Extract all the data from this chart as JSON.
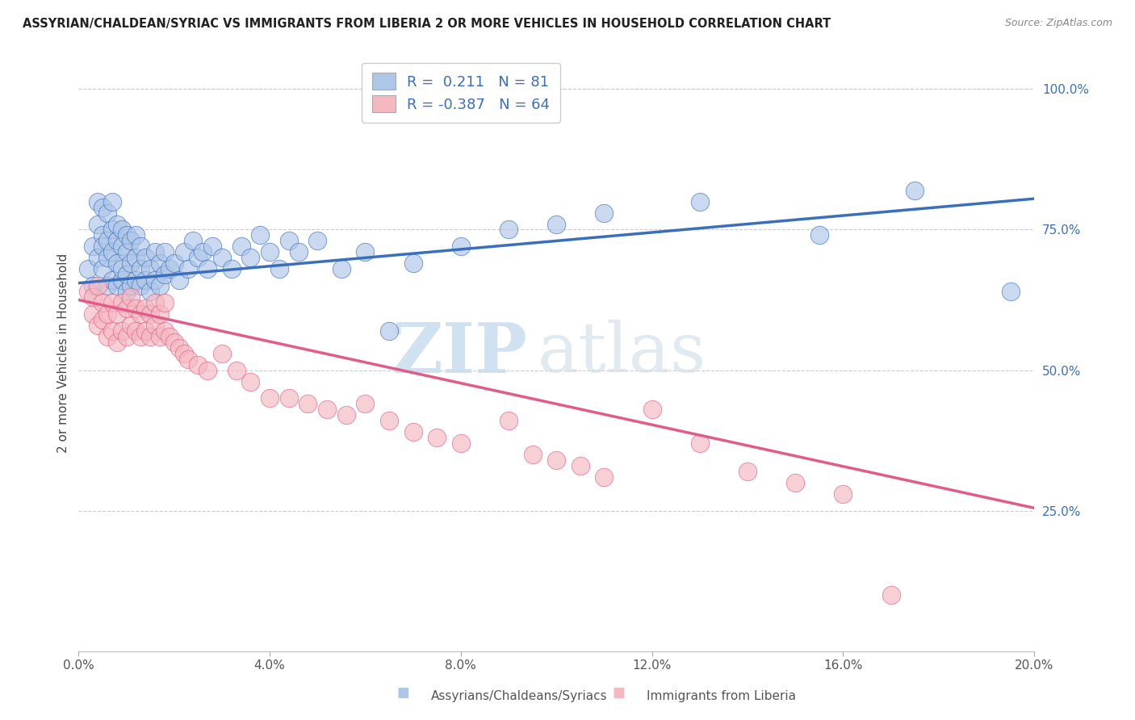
{
  "title": "ASSYRIAN/CHALDEAN/SYRIAC VS IMMIGRANTS FROM LIBERIA 2 OR MORE VEHICLES IN HOUSEHOLD CORRELATION CHART",
  "source": "Source: ZipAtlas.com",
  "ylabel": "2 or more Vehicles in Household",
  "legend_blue_r": " 0.211",
  "legend_blue_n": "81",
  "legend_pink_r": "-0.387",
  "legend_pink_n": "64",
  "blue_color": "#aec6e8",
  "pink_color": "#f4b8c1",
  "blue_line_color": "#3a6fbc",
  "pink_line_color": "#e05c8a",
  "blue_label": "Assyrians/Chaldeans/Syriacs",
  "pink_label": "Immigrants from Liberia",
  "watermark_zip": "ZIP",
  "watermark_atlas": "atlas",
  "blue_x": [
    0.002,
    0.003,
    0.003,
    0.004,
    0.004,
    0.004,
    0.005,
    0.005,
    0.005,
    0.005,
    0.006,
    0.006,
    0.006,
    0.006,
    0.007,
    0.007,
    0.007,
    0.007,
    0.008,
    0.008,
    0.008,
    0.008,
    0.009,
    0.009,
    0.009,
    0.009,
    0.01,
    0.01,
    0.01,
    0.01,
    0.011,
    0.011,
    0.011,
    0.012,
    0.012,
    0.012,
    0.013,
    0.013,
    0.013,
    0.014,
    0.014,
    0.015,
    0.015,
    0.016,
    0.016,
    0.017,
    0.017,
    0.018,
    0.018,
    0.019,
    0.02,
    0.021,
    0.022,
    0.023,
    0.024,
    0.025,
    0.026,
    0.027,
    0.028,
    0.03,
    0.032,
    0.034,
    0.036,
    0.038,
    0.04,
    0.042,
    0.044,
    0.046,
    0.05,
    0.055,
    0.06,
    0.065,
    0.07,
    0.08,
    0.09,
    0.1,
    0.11,
    0.13,
    0.155,
    0.175,
    0.195
  ],
  "blue_y": [
    0.68,
    0.72,
    0.65,
    0.7,
    0.76,
    0.8,
    0.74,
    0.68,
    0.72,
    0.79,
    0.65,
    0.7,
    0.73,
    0.78,
    0.66,
    0.71,
    0.75,
    0.8,
    0.65,
    0.69,
    0.73,
    0.76,
    0.66,
    0.68,
    0.72,
    0.75,
    0.64,
    0.67,
    0.71,
    0.74,
    0.65,
    0.69,
    0.73,
    0.66,
    0.7,
    0.74,
    0.65,
    0.68,
    0.72,
    0.66,
    0.7,
    0.64,
    0.68,
    0.66,
    0.71,
    0.65,
    0.69,
    0.67,
    0.71,
    0.68,
    0.69,
    0.66,
    0.71,
    0.68,
    0.73,
    0.7,
    0.71,
    0.68,
    0.72,
    0.7,
    0.68,
    0.72,
    0.7,
    0.74,
    0.71,
    0.68,
    0.73,
    0.71,
    0.73,
    0.68,
    0.71,
    0.57,
    0.69,
    0.72,
    0.75,
    0.76,
    0.78,
    0.8,
    0.74,
    0.82,
    0.64
  ],
  "pink_x": [
    0.002,
    0.003,
    0.003,
    0.004,
    0.004,
    0.005,
    0.005,
    0.006,
    0.006,
    0.007,
    0.007,
    0.008,
    0.008,
    0.009,
    0.009,
    0.01,
    0.01,
    0.011,
    0.011,
    0.012,
    0.012,
    0.013,
    0.013,
    0.014,
    0.014,
    0.015,
    0.015,
    0.016,
    0.016,
    0.017,
    0.017,
    0.018,
    0.018,
    0.019,
    0.02,
    0.021,
    0.022,
    0.023,
    0.025,
    0.027,
    0.03,
    0.033,
    0.036,
    0.04,
    0.044,
    0.048,
    0.052,
    0.056,
    0.06,
    0.065,
    0.07,
    0.075,
    0.08,
    0.09,
    0.095,
    0.1,
    0.105,
    0.11,
    0.12,
    0.13,
    0.14,
    0.15,
    0.16,
    0.17
  ],
  "pink_y": [
    0.64,
    0.6,
    0.63,
    0.58,
    0.65,
    0.59,
    0.62,
    0.56,
    0.6,
    0.57,
    0.62,
    0.55,
    0.6,
    0.57,
    0.62,
    0.56,
    0.61,
    0.58,
    0.63,
    0.57,
    0.61,
    0.56,
    0.6,
    0.57,
    0.61,
    0.56,
    0.6,
    0.58,
    0.62,
    0.56,
    0.6,
    0.57,
    0.62,
    0.56,
    0.55,
    0.54,
    0.53,
    0.52,
    0.51,
    0.5,
    0.53,
    0.5,
    0.48,
    0.45,
    0.45,
    0.44,
    0.43,
    0.42,
    0.44,
    0.41,
    0.39,
    0.38,
    0.37,
    0.41,
    0.35,
    0.34,
    0.33,
    0.31,
    0.43,
    0.37,
    0.32,
    0.3,
    0.28,
    0.1
  ],
  "xlim": [
    0.0,
    0.2
  ],
  "ylim": [
    0.0,
    1.06
  ],
  "x_ticks": [
    0.0,
    0.04,
    0.08,
    0.12,
    0.16,
    0.2
  ],
  "x_tick_labels": [
    "0.0%",
    "4.0%",
    "8.0%",
    "12.0%",
    "16.0%",
    "20.0%"
  ],
  "y_ticks": [
    0.25,
    0.5,
    0.75,
    1.0
  ],
  "y_tick_labels": [
    "25.0%",
    "50.0%",
    "75.0%",
    "100.0%"
  ],
  "figsize": [
    14.06,
    8.92
  ],
  "dpi": 100
}
